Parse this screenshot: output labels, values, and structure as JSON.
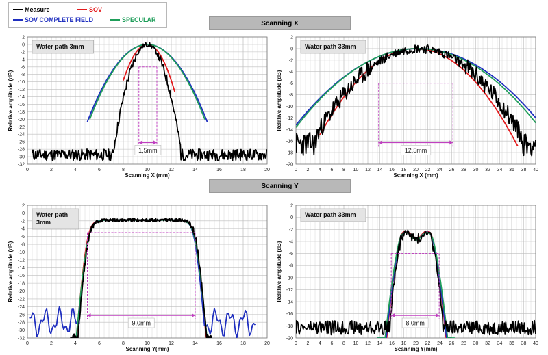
{
  "legend": {
    "items": [
      {
        "label": "Measure",
        "color": "#000000"
      },
      {
        "label": "SOV",
        "color": "#e31a1c"
      },
      {
        "label": "SOV COMPLETE FIELD",
        "color": "#1f2fbf"
      },
      {
        "label": "SPECULAR",
        "color": "#1f9e5a"
      }
    ]
  },
  "sections": {
    "scanning_x": "Scanning X",
    "scanning_y": "Scanning Y"
  },
  "chart_data": [
    {
      "type": "line",
      "panel_label": "Water path 3mm",
      "xlabel": "Scanning X (mm)",
      "ylabel": "Relative amplitude (dB)",
      "xlim": [
        0,
        20
      ],
      "ylim": [
        -32,
        2
      ],
      "xticks": [
        0,
        2,
        4,
        6,
        8,
        10,
        12,
        14,
        16,
        18,
        20
      ],
      "yticks": [
        2,
        0,
        -2,
        -4,
        -6,
        -8,
        -10,
        -12,
        -14,
        -16,
        -18,
        -20,
        -22,
        -24,
        -26,
        -28,
        -30,
        -32
      ],
      "grid": true,
      "annotation": {
        "text": "1,5mm",
        "level": -6,
        "from": 9.3,
        "to": 10.8
      },
      "series": [
        {
          "name": "Measure",
          "color": "#000000",
          "kind": "noisy",
          "center": 10,
          "sigma": 0.78,
          "plateau": 0,
          "floor": -29.5,
          "noise": 1.2,
          "seed": 11,
          "x": [
            0.4,
            20
          ]
        },
        {
          "name": "SOV",
          "color": "#e31a1c",
          "kind": "gauss",
          "center": 10,
          "sigma": 0.95,
          "plateau": 0,
          "x": [
            8.0,
            12.3
          ]
        },
        {
          "name": "SOV COMPLETE FIELD",
          "color": "#1f2fbf",
          "kind": "gauss",
          "center": 10,
          "sigma": 1.62,
          "plateau": 0,
          "x": [
            5.0,
            15.0
          ]
        },
        {
          "name": "SPECULAR",
          "color": "#1f9e5a",
          "kind": "gauss",
          "center": 10,
          "sigma": 1.58,
          "plateau": 0,
          "x": [
            5.2,
            14.8
          ]
        }
      ]
    },
    {
      "type": "line",
      "panel_label": "Water path 33mm",
      "xlabel": "Scanning X (mm)",
      "ylabel": "Relative amplitude (dB)",
      "xlim": [
        0,
        40
      ],
      "ylim": [
        -20,
        2
      ],
      "xticks": [
        0,
        2,
        4,
        6,
        8,
        10,
        12,
        14,
        16,
        18,
        20,
        22,
        24,
        26,
        28,
        30,
        32,
        34,
        36,
        38,
        40
      ],
      "yticks": [
        2,
        0,
        -2,
        -4,
        -6,
        -8,
        -10,
        -12,
        -14,
        -16,
        -18,
        -20
      ],
      "grid": true,
      "annotation": {
        "text": "12,5mm",
        "level": -6,
        "from": 13.8,
        "to": 26.2
      },
      "series": [
        {
          "name": "Measure",
          "color": "#000000",
          "kind": "noisy",
          "center": 20.5,
          "sigma": 6.5,
          "plateau": 0,
          "floor": -16.5,
          "noise": 1.6,
          "seed": 23,
          "x": [
            0,
            40
          ]
        },
        {
          "name": "SOV",
          "color": "#e31a1c",
          "kind": "gauss",
          "center": 20,
          "sigma": 6.1,
          "plateau": 0,
          "x": [
            4.0,
            37.0
          ]
        },
        {
          "name": "SOV COMPLETE FIELD",
          "color": "#1f2fbf",
          "kind": "gauss",
          "center": 20.5,
          "sigma": 8.3,
          "plateau": 0,
          "x": [
            0,
            40
          ]
        },
        {
          "name": "SPECULAR",
          "color": "#1f9e5a",
          "kind": "gauss",
          "center": 20.3,
          "sigma": 8.1,
          "plateau": 0,
          "x": [
            0,
            40
          ]
        }
      ]
    },
    {
      "type": "line",
      "panel_label": "Water path\n3mm",
      "xlabel": "Scanning Y(mm)",
      "ylabel": "Relative amplitude (dB)",
      "xlim": [
        0,
        20
      ],
      "ylim": [
        -32,
        2
      ],
      "xticks": [
        0,
        2,
        4,
        6,
        8,
        10,
        12,
        14,
        16,
        18,
        20
      ],
      "yticks": [
        2,
        0,
        -2,
        -4,
        -6,
        -8,
        -10,
        -12,
        -14,
        -16,
        -18,
        -20,
        -22,
        -24,
        -26,
        -28,
        -30,
        -32
      ],
      "grid": true,
      "annotation": {
        "text": "9,0mm",
        "level": -5,
        "from": 5.0,
        "to": 14.0
      },
      "series": [
        {
          "name": "Measure",
          "color": "#000000",
          "kind": "flat_noisy",
          "left": 5.05,
          "right": 14.1,
          "edge": 0.25,
          "plateau": -1.8,
          "floor": -32,
          "noise": 0.8,
          "seed": 31,
          "x": [
            3.6,
            15.4
          ]
        },
        {
          "name": "SOV",
          "color": "#e31a1c",
          "kind": "flat",
          "left": 4.95,
          "right": 14.05,
          "edge": 0.25,
          "plateau": -1.8,
          "x": [
            3.9,
            15.0
          ]
        },
        {
          "name": "SOV COMPLETE FIELD",
          "color": "#1f2fbf",
          "kind": "flat_wings",
          "left": 5.0,
          "right": 14.0,
          "edge": 0.25,
          "plateau": -1.8,
          "x": [
            0.2,
            19.0
          ]
        },
        {
          "name": "SPECULAR",
          "color": "#1f9e5a",
          "kind": "flat",
          "left": 5.0,
          "right": 14.05,
          "edge": 0.27,
          "plateau": -1.8,
          "x": [
            3.8,
            15.2
          ]
        }
      ]
    },
    {
      "type": "line",
      "panel_label": "Water path 33mm",
      "xlabel": "Scanning Y(mm)",
      "ylabel": "Relative amplitude (dB)",
      "xlim": [
        0,
        40
      ],
      "ylim": [
        -20,
        2
      ],
      "xticks": [
        0,
        2,
        4,
        6,
        8,
        10,
        12,
        14,
        16,
        18,
        20,
        22,
        24,
        26,
        28,
        30,
        32,
        34,
        36,
        38,
        40
      ],
      "yticks": [
        2,
        0,
        -2,
        -4,
        -6,
        -8,
        -10,
        -12,
        -14,
        -16,
        -18,
        -20
      ],
      "grid": true,
      "annotation": {
        "text": "8,0mm",
        "level": -6,
        "from": 15.9,
        "to": 23.9
      },
      "series": [
        {
          "name": "Measure",
          "color": "#000000",
          "kind": "double_noisy",
          "left": 16.8,
          "right": 23.4,
          "edge": 0.9,
          "floor": -18.3,
          "noise": 0.9,
          "seed": 47,
          "x": [
            0,
            40
          ]
        },
        {
          "name": "SOV",
          "color": "#e31a1c",
          "kind": "double",
          "left": 16.6,
          "right": 23.6,
          "edge": 0.9,
          "x": [
            13.5,
            26.0
          ]
        },
        {
          "name": "SOV COMPLETE FIELD",
          "color": "#1f2fbf",
          "kind": "double",
          "left": 16.6,
          "right": 23.6,
          "edge": 0.95,
          "x": [
            13.5,
            26.0
          ]
        },
        {
          "name": "SPECULAR",
          "color": "#1f9e5a",
          "kind": "double",
          "left": 16.5,
          "right": 23.7,
          "edge": 1.0,
          "x": [
            13.5,
            26.5
          ]
        }
      ]
    }
  ]
}
